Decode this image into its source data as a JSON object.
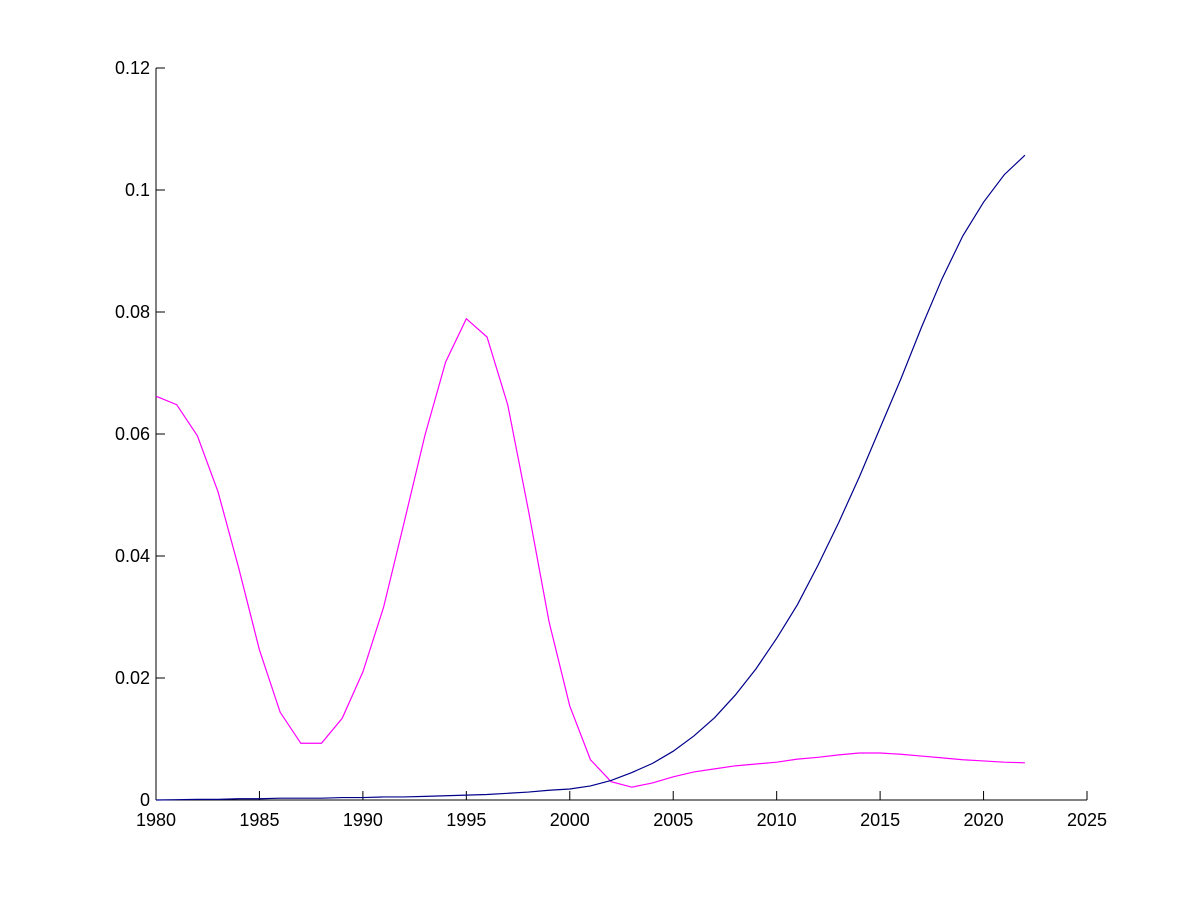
{
  "chart_data": {
    "type": "line",
    "x": [
      1980,
      1981,
      1982,
      1983,
      1984,
      1985,
      1986,
      1987,
      1988,
      1989,
      1990,
      1991,
      1992,
      1993,
      1994,
      1995,
      1996,
      1997,
      1998,
      1999,
      2000,
      2001,
      2002,
      2003,
      2004,
      2005,
      2006,
      2007,
      2008,
      2009,
      2010,
      2011,
      2012,
      2013,
      2014,
      2015,
      2016,
      2017,
      2018,
      2019,
      2020,
      2021,
      2022
    ],
    "series": [
      {
        "color": "#ff00ff",
        "values": [
          0.0662,
          0.0648,
          0.0597,
          0.0505,
          0.038,
          0.0246,
          0.0144,
          0.0093,
          0.0093,
          0.0134,
          0.021,
          0.0316,
          0.0456,
          0.0598,
          0.0718,
          0.0789,
          0.0759,
          0.0648,
          0.0475,
          0.0292,
          0.0154,
          0.0066,
          0.003,
          0.0021,
          0.0028,
          0.0038,
          0.0046,
          0.0051,
          0.0056,
          0.0059,
          0.0062,
          0.0067,
          0.007,
          0.0074,
          0.0077,
          0.0077,
          0.0075,
          0.0072,
          0.0069,
          0.0066,
          0.0064,
          0.0062,
          0.0061
        ]
      },
      {
        "color": "#00008b",
        "values": [
          0,
          5e-05,
          0.0001,
          0.0001,
          0.0002,
          0.0002,
          0.0003,
          0.0003,
          0.0003,
          0.0004,
          0.0004,
          0.0005,
          0.0005,
          0.0006,
          0.0007,
          0.0008,
          0.0009,
          0.0011,
          0.0013,
          0.0016,
          0.0018,
          0.0023,
          0.0032,
          0.0045,
          0.006,
          0.008,
          0.0105,
          0.0135,
          0.0172,
          0.0215,
          0.0265,
          0.032,
          0.0385,
          0.0455,
          0.053,
          0.061,
          0.069,
          0.0775,
          0.0855,
          0.0925,
          0.098,
          0.1025,
          0.1057
        ]
      }
    ],
    "xlim": [
      1980,
      2025
    ],
    "xticks": [
      1980,
      1985,
      1990,
      1995,
      2000,
      2005,
      2010,
      2015,
      2020,
      2025
    ],
    "ylim": [
      0,
      0.12
    ],
    "yticks": [
      0,
      0.02,
      0.04,
      0.06,
      0.08,
      0.1,
      0.12
    ],
    "grid": false
  }
}
